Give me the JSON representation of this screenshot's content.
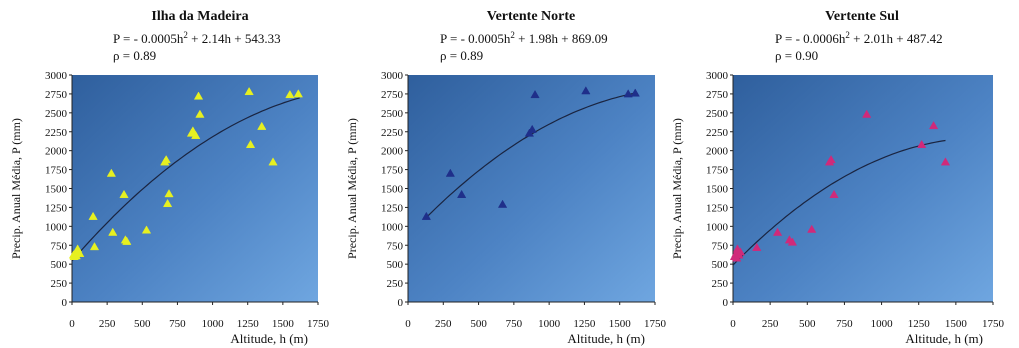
{
  "chart_data": [
    {
      "type": "scatter",
      "title": "Ilha da Madeira",
      "equation": {
        "base": "P = - 0.0005h",
        "sup": "2",
        "rest": " + 2.14h + 543.33"
      },
      "rho": "ρ = 0.89",
      "xlabel": "Altitude, h (m)",
      "ylabel": "Precip. Anual Média, P (mm)",
      "xlim": [
        0,
        1750
      ],
      "ylim": [
        0,
        3000
      ],
      "xticks": [
        0,
        250,
        500,
        750,
        1000,
        1250,
        1500,
        1750
      ],
      "yticks": [
        0,
        250,
        500,
        750,
        1000,
        1250,
        1500,
        1750,
        2000,
        2250,
        2500,
        2750,
        3000
      ],
      "marker_color": "#e6f020",
      "fit": {
        "a": -0.0005,
        "b": 2.14,
        "c": 543.33,
        "x_range": [
          0,
          1620
        ]
      },
      "series": [
        {
          "x": [
            10,
            25,
            40,
            55,
            15,
            30,
            150,
            160,
            280,
            290,
            370,
            380,
            390,
            530,
            660,
            670,
            680,
            690,
            850,
            860,
            880,
            900,
            910,
            1260,
            1270,
            1350,
            1430,
            1550,
            1610
          ],
          "y": [
            620,
            650,
            700,
            640,
            600,
            610,
            1130,
            730,
            1700,
            920,
            1420,
            820,
            800,
            950,
            1850,
            1880,
            1300,
            1430,
            2230,
            2260,
            2200,
            2720,
            2480,
            2780,
            2080,
            2320,
            1850,
            2740,
            2750
          ]
        }
      ]
    },
    {
      "type": "scatter",
      "title": "Vertente Norte",
      "equation": {
        "base": "P = - 0.0005h",
        "sup": "2",
        "rest": " + 1.98h + 869.09"
      },
      "rho": "ρ = 0.89",
      "xlabel": "Altitude, h (m)",
      "ylabel": "Precip. Anual Média, P (mm)",
      "xlim": [
        0,
        1750
      ],
      "ylim": [
        0,
        3000
      ],
      "xticks": [
        0,
        250,
        500,
        750,
        1000,
        1250,
        1500,
        1750
      ],
      "yticks": [
        0,
        250,
        500,
        750,
        1000,
        1250,
        1500,
        1750,
        2000,
        2250,
        2500,
        2750,
        3000
      ],
      "marker_color": "#1f2f8a",
      "fit": {
        "a": -0.0005,
        "b": 1.98,
        "c": 869.09,
        "x_range": [
          120,
          1620
        ]
      },
      "series": [
        {
          "x": [
            130,
            300,
            380,
            670,
            860,
            880,
            900,
            1260,
            1560,
            1610
          ],
          "y": [
            1130,
            1700,
            1420,
            1290,
            2230,
            2280,
            2740,
            2790,
            2750,
            2760
          ]
        }
      ]
    },
    {
      "type": "scatter",
      "title": "Vertente Sul",
      "equation": {
        "base": "P = - 0.0006h",
        "sup": "2",
        "rest": " + 2.01h + 487.42"
      },
      "rho": "ρ = 0.90",
      "xlabel": "Altitude, h (m)",
      "ylabel": "Precip. Anual Média, P (mm)",
      "xlim": [
        0,
        1750
      ],
      "ylim": [
        0,
        3000
      ],
      "xticks": [
        0,
        250,
        500,
        750,
        1000,
        1250,
        1500,
        1750
      ],
      "yticks": [
        0,
        250,
        500,
        750,
        1000,
        1250,
        1500,
        1750,
        2000,
        2250,
        2500,
        2750,
        3000
      ],
      "marker_color": "#d02a7a",
      "fit": {
        "a": -0.0006,
        "b": 2.01,
        "c": 487.42,
        "x_range": [
          0,
          1430
        ]
      },
      "series": [
        {
          "x": [
            10,
            20,
            30,
            40,
            50,
            25,
            160,
            300,
            380,
            400,
            530,
            650,
            660,
            680,
            900,
            1270,
            1350,
            1430
          ],
          "y": [
            600,
            640,
            700,
            620,
            660,
            580,
            720,
            920,
            820,
            790,
            960,
            1850,
            1880,
            1420,
            2480,
            2080,
            2330,
            1850
          ]
        }
      ]
    }
  ]
}
